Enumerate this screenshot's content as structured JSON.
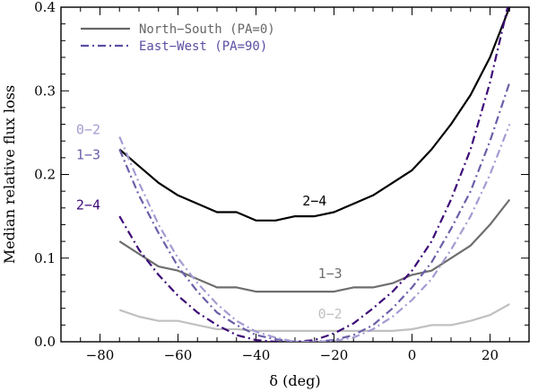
{
  "chart_data": {
    "type": "line",
    "xlabel": "δ (deg)",
    "ylabel": "Median relative flux loss",
    "xlim": [
      -90,
      30
    ],
    "ylim": [
      0,
      0.4
    ],
    "xticks": [
      -80,
      -60,
      -40,
      -20,
      0,
      20
    ],
    "xtick_labels": [
      "−80",
      "−60",
      "−40",
      "−20",
      "0",
      "20"
    ],
    "yticks": [
      0.0,
      0.1,
      0.2,
      0.3,
      0.4
    ],
    "ytick_labels": [
      "0.0",
      "0.1",
      "0.2",
      "0.3",
      "0.4"
    ],
    "legend": [
      {
        "label": "North−South (PA=0)",
        "style": "solid",
        "color": "#666666"
      },
      {
        "label": "East−West (PA=90)",
        "style": "dashdot",
        "color": "#5b4ea3"
      }
    ],
    "series": [
      {
        "name": "NS 2-4",
        "style": "solid",
        "color": "#000000",
        "x": [
          -75,
          -70,
          -65,
          -60,
          -55,
          -50,
          -45,
          -40,
          -35,
          -30,
          -25,
          -20,
          -15,
          -10,
          -5,
          0,
          5,
          10,
          15,
          20,
          25
        ],
        "y": [
          0.23,
          0.21,
          0.19,
          0.175,
          0.165,
          0.155,
          0.155,
          0.145,
          0.145,
          0.15,
          0.15,
          0.155,
          0.165,
          0.175,
          0.19,
          0.205,
          0.23,
          0.26,
          0.295,
          0.34,
          0.4
        ]
      },
      {
        "name": "NS 1-3",
        "style": "solid",
        "color": "#6e6e6e",
        "x": [
          -75,
          -70,
          -65,
          -60,
          -55,
          -50,
          -45,
          -40,
          -35,
          -30,
          -25,
          -20,
          -15,
          -10,
          -5,
          0,
          5,
          10,
          15,
          20,
          25
        ],
        "y": [
          0.12,
          0.105,
          0.09,
          0.085,
          0.075,
          0.065,
          0.065,
          0.06,
          0.06,
          0.06,
          0.06,
          0.06,
          0.065,
          0.065,
          0.07,
          0.08,
          0.085,
          0.1,
          0.115,
          0.14,
          0.17
        ]
      },
      {
        "name": "NS 0-2",
        "style": "solid",
        "color": "#c0c0c0",
        "x": [
          -75,
          -70,
          -65,
          -60,
          -55,
          -50,
          -45,
          -40,
          -35,
          -30,
          -25,
          -20,
          -15,
          -10,
          -5,
          0,
          5,
          10,
          15,
          20,
          25
        ],
        "y": [
          0.038,
          0.03,
          0.025,
          0.025,
          0.02,
          0.015,
          0.015,
          0.013,
          0.013,
          0.013,
          0.013,
          0.013,
          0.013,
          0.013,
          0.013,
          0.015,
          0.02,
          0.02,
          0.025,
          0.032,
          0.045
        ]
      },
      {
        "name": "EW 2-4",
        "style": "dashdot",
        "color": "#3d0a78",
        "x": [
          -75,
          -70,
          -65,
          -60,
          -55,
          -50,
          -45,
          -40,
          -35,
          -30,
          -25,
          -20,
          -15,
          -10,
          -5,
          0,
          5,
          10,
          15,
          20,
          25
        ],
        "y": [
          0.15,
          0.11,
          0.08,
          0.055,
          0.035,
          0.02,
          0.008,
          0.002,
          0.0,
          0.0,
          0.002,
          0.01,
          0.022,
          0.04,
          0.06,
          0.085,
          0.12,
          0.17,
          0.23,
          0.31,
          0.41
        ]
      },
      {
        "name": "EW 1-3",
        "style": "dashdot",
        "color": "#6b5fa8",
        "x": [
          -75,
          -70,
          -65,
          -60,
          -55,
          -50,
          -45,
          -40,
          -35,
          -30,
          -25,
          -20,
          -15,
          -10,
          -5,
          0,
          5,
          10,
          15,
          20,
          25
        ],
        "y": [
          0.23,
          0.175,
          0.13,
          0.09,
          0.06,
          0.035,
          0.02,
          0.008,
          0.003,
          0.0,
          0.0,
          0.002,
          0.008,
          0.02,
          0.04,
          0.065,
          0.095,
          0.135,
          0.18,
          0.24,
          0.31
        ]
      },
      {
        "name": "EW 0-2",
        "style": "dashdot",
        "color": "#a49cd2",
        "x": [
          -75,
          -70,
          -65,
          -60,
          -55,
          -50,
          -45,
          -40,
          -35,
          -30,
          -25,
          -20,
          -15,
          -10,
          -5,
          0,
          5,
          10,
          15,
          20,
          25
        ],
        "y": [
          0.245,
          0.19,
          0.14,
          0.1,
          0.07,
          0.045,
          0.025,
          0.012,
          0.005,
          0.0,
          0.0,
          0.001,
          0.005,
          0.015,
          0.03,
          0.05,
          0.075,
          0.11,
          0.15,
          0.2,
          0.26
        ]
      }
    ],
    "annotations": [
      {
        "text": "2−4",
        "x": -25,
        "y": 0.163,
        "color": "#000000"
      },
      {
        "text": "1−3",
        "x": -21,
        "y": 0.076,
        "color": "#6e6e6e"
      },
      {
        "text": "0−2",
        "x": -21,
        "y": 0.028,
        "color": "#c0c0c0"
      },
      {
        "text": "0−2",
        "x": -83,
        "y": 0.248,
        "color": "#a49cd2"
      },
      {
        "text": "1−3",
        "x": -83,
        "y": 0.218,
        "color": "#6b5fa8"
      },
      {
        "text": "2−4",
        "x": -83,
        "y": 0.158,
        "color": "#3d0a78"
      }
    ]
  }
}
